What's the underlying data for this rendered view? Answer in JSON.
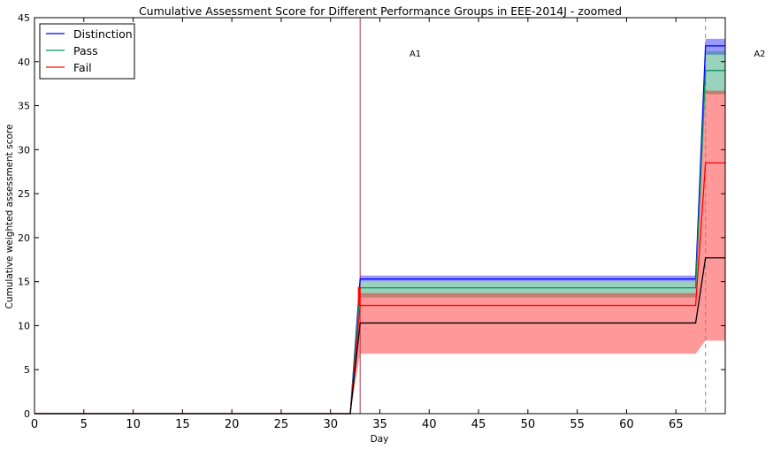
{
  "chart_data": {
    "type": "line",
    "title": "Cumulative Assessment Score for Different Performance Groups in EEE-2014J - zoomed",
    "xlabel": "Day",
    "ylabel": "Cumulative weighted assessment score",
    "xlim": [
      0,
      70
    ],
    "ylim": [
      0,
      45
    ],
    "x_ticks": [
      0,
      5,
      10,
      15,
      20,
      25,
      30,
      35,
      40,
      45,
      50,
      55,
      60,
      65
    ],
    "y_ticks": [
      0,
      5,
      10,
      15,
      20,
      25,
      30,
      35,
      40,
      45
    ],
    "grid": false,
    "legend_position": "top-left",
    "colors": {
      "Distinction": "#0000ff",
      "Pass": "#008f5a",
      "Fail": "#ff0000"
    },
    "series": [
      {
        "name": "Distinction",
        "x": [
          0,
          32,
          33,
          67,
          68,
          70
        ],
        "y": [
          0,
          0,
          15.3,
          15.3,
          41.8,
          41.8
        ],
        "band_low": [
          0,
          0,
          15.0,
          15.0,
          40.8,
          40.8
        ],
        "band_high": [
          0,
          0,
          15.7,
          15.7,
          42.6,
          42.6
        ]
      },
      {
        "name": "Pass",
        "x": [
          0,
          32,
          33,
          67,
          68,
          70
        ],
        "y": [
          0,
          0,
          14.3,
          14.3,
          39.0,
          39.0
        ],
        "band_low": [
          0,
          0,
          13.2,
          13.2,
          36.3,
          36.3
        ],
        "band_high": [
          0,
          0,
          15.0,
          15.0,
          41.2,
          41.2
        ]
      },
      {
        "name": "Fail",
        "x": [
          0,
          32,
          33,
          67,
          68,
          70
        ],
        "y": [
          0,
          0,
          12.3,
          12.3,
          28.5,
          28.5
        ],
        "band_low": [
          0,
          0,
          6.8,
          6.8,
          8.3,
          8.3
        ],
        "band_high": [
          0,
          0,
          13.7,
          13.7,
          36.7,
          36.7
        ]
      },
      {
        "name": "",
        "color": "#000000",
        "x": [
          0,
          32,
          33,
          67,
          68,
          70
        ],
        "y": [
          0,
          0,
          10.3,
          10.3,
          17.7,
          17.7
        ]
      }
    ],
    "fail_marker": {
      "x": 33,
      "y_low": 12.3,
      "y_high": 14.4
    },
    "assessments": [
      {
        "label": "A1",
        "day": 33,
        "label_x": 38.0,
        "label_y": 41.0,
        "line_color": "#b03050",
        "style": "solid"
      },
      {
        "label": "A2",
        "day": 68,
        "label_x": 72.9,
        "label_y": 41.0,
        "line_color": "#888888",
        "style": "dashed"
      }
    ]
  }
}
